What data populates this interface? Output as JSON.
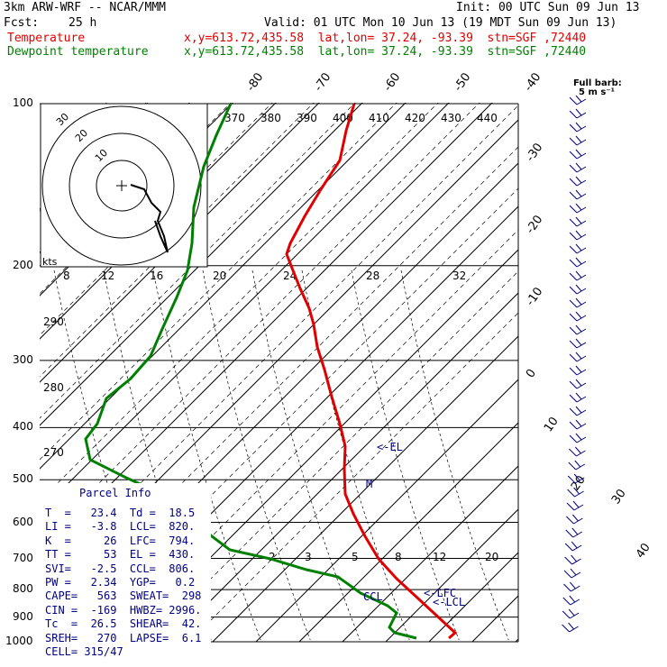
{
  "header": {
    "model": "3km ARW-WRF -- NCAR/MMM",
    "init": "Init: 00 UTC Sun 09 Jun 13",
    "fcst_label": "Fcst:",
    "fcst_value": "25 h",
    "valid": "Valid: 01 UTC Mon 10 Jun 13 (19 MDT Sun 09 Jun 13)",
    "temp_label": "Temperature",
    "temp_info": "x,y=613.72,435.58  lat,lon= 37.24, -93.39  stn=SGF ,72440",
    "dew_label": "Dewpoint temperature",
    "dew_info": "x,y=613.72,435.58  lat,lon= 37.24, -93.39  stn=SGF ,72440"
  },
  "full_barb": {
    "line1": "Full barb:",
    "line2": "5 m s⁻¹"
  },
  "parcel": {
    "title": "Parcel Info",
    "rows": [
      "T  =   23.4  Td =  18.5",
      "LI =   -3.8  LCL=  820.",
      "K  =     26  LFC=  794.",
      "TT =     53  EL =  430.",
      "SVI=   -2.5  CCL=  806.",
      "PW =   2.34  YGP=   0.2",
      "CAPE=   563  SWEAT=  298",
      "CIN =  -169  HWBZ= 2996.",
      "Tc  =  26.5  SHEAR=  42.",
      "SREH=   270  LAPSE=  6.1",
      "CELL= 315/47"
    ]
  },
  "annotations": {
    "el": "<-EL",
    "lfc": "<-LFC",
    "lcl": "<-LCL",
    "ccl": "CCL",
    "m": "M"
  },
  "hodograph": {
    "unit": "kts",
    "rings": [
      "10",
      "20",
      "30"
    ]
  },
  "colors": {
    "temperature": "#e00000",
    "dewpoint": "#008000",
    "text_blue": "#000080",
    "header_red": "#e00000",
    "header_green": "#008000"
  },
  "chart_data": {
    "type": "line",
    "pressure_levels": [
      100,
      200,
      300,
      400,
      500,
      600,
      700,
      800,
      900,
      1000
    ],
    "isotherm_labels": [
      "-80",
      "-70",
      "-60",
      "-50",
      "-40",
      "-30",
      "-20",
      "-10",
      "0",
      "10",
      "20",
      "30",
      "40"
    ],
    "dry_adiabat_labels": [
      "370",
      "380",
      "390",
      "400",
      "410",
      "420",
      "430",
      "440"
    ],
    "moist_adiabat_labels": [
      "8",
      "12",
      "16",
      "20",
      "24",
      "28",
      "32"
    ],
    "theta_side_labels": [
      "290",
      "280",
      "270"
    ],
    "mixing_ratio_labels": [
      "2",
      "3",
      "5",
      "8",
      "12",
      "20"
    ],
    "series": [
      {
        "name": "Temperature",
        "color": "#e00000",
        "points": [
          [
            393,
            115
          ],
          [
            384,
            145
          ],
          [
            377,
            178
          ],
          [
            356,
            210
          ],
          [
            338,
            240
          ],
          [
            322,
            270
          ],
          [
            318,
            282
          ],
          [
            325,
            300
          ],
          [
            333,
            320
          ],
          [
            343,
            342
          ],
          [
            348,
            360
          ],
          [
            352,
            385
          ],
          [
            360,
            410
          ],
          [
            368,
            440
          ],
          [
            377,
            470
          ],
          [
            383,
            495
          ],
          [
            382,
            520
          ],
          [
            383,
            548
          ],
          [
            392,
            570
          ],
          [
            405,
            595
          ],
          [
            420,
            620
          ],
          [
            440,
            642
          ],
          [
            465,
            665
          ],
          [
            492,
            690
          ],
          [
            505,
            702
          ],
          [
            498,
            708
          ]
        ]
      },
      {
        "name": "Dewpoint temperature",
        "color": "#008000",
        "points": [
          [
            256,
            115
          ],
          [
            240,
            150
          ],
          [
            226,
            185
          ],
          [
            215,
            230
          ],
          [
            213,
            270
          ],
          [
            208,
            300
          ],
          [
            196,
            330
          ],
          [
            180,
            365
          ],
          [
            167,
            395
          ],
          [
            145,
            420
          ],
          [
            118,
            442
          ],
          [
            108,
            470
          ],
          [
            95,
            487
          ],
          [
            100,
            510
          ],
          [
            140,
            530
          ],
          [
            180,
            548
          ],
          [
            210,
            570
          ],
          [
            235,
            595
          ],
          [
            255,
            610
          ],
          [
            300,
            620
          ],
          [
            340,
            632
          ],
          [
            375,
            640
          ],
          [
            400,
            658
          ],
          [
            430,
            672
          ],
          [
            440,
            680
          ],
          [
            432,
            696
          ],
          [
            438,
            702
          ],
          [
            462,
            708
          ]
        ]
      }
    ],
    "hodograph": [
      [
        145,
        205
      ],
      [
        160,
        210
      ],
      [
        168,
        225
      ],
      [
        178,
        235
      ],
      [
        175,
        245
      ],
      [
        182,
        262
      ],
      [
        186,
        280
      ],
      [
        178,
        262
      ],
      [
        172,
        245
      ]
    ],
    "wind_barbs": {
      "count": 40
    }
  }
}
